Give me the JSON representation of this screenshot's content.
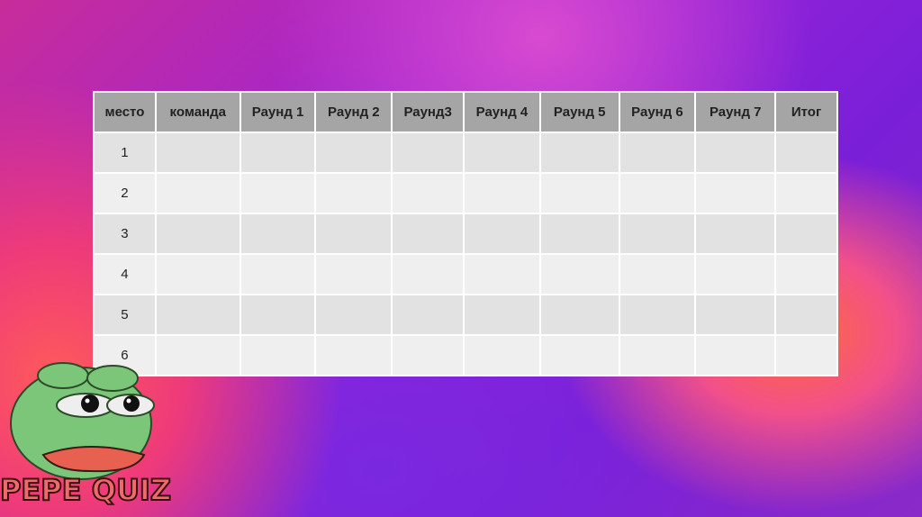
{
  "table": {
    "headers": [
      "место",
      "команда",
      "Раунд 1",
      "Раунд 2",
      "Раунд3",
      "Раунд 4",
      "Раунд 5",
      "Раунд 6",
      "Раунд 7",
      "Итог"
    ],
    "rows": [
      [
        "1"
      ],
      [
        "2"
      ],
      [
        "3"
      ],
      [
        "4"
      ],
      [
        "5"
      ],
      [
        "6"
      ]
    ]
  },
  "logo": {
    "text": "PEPE QUIZ"
  }
}
